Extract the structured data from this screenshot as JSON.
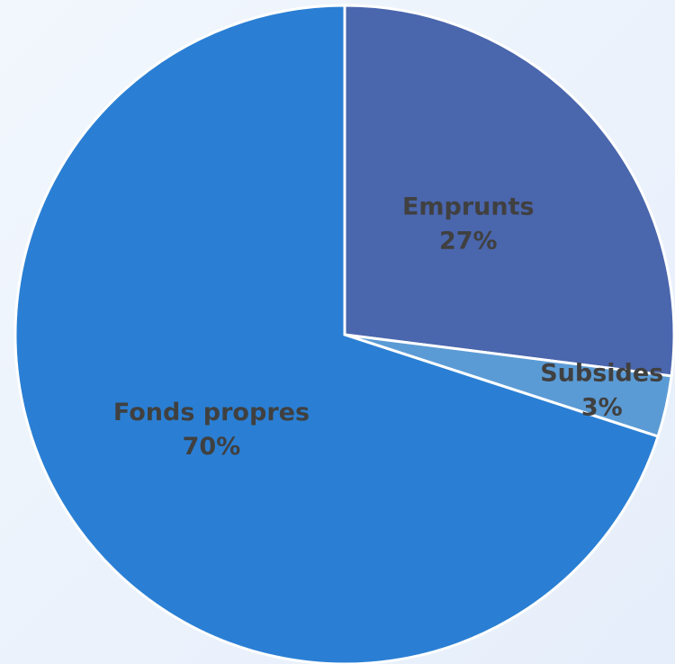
{
  "chart_data": {
    "type": "pie",
    "categories": [
      "Emprunts",
      "Subsides",
      "Fonds propres"
    ],
    "values": [
      27,
      3,
      70
    ],
    "value_labels": [
      "27%",
      "3%",
      "70%"
    ],
    "colors": [
      "#4a66ad",
      "#5b9bd5",
      "#2a7fd4"
    ]
  }
}
